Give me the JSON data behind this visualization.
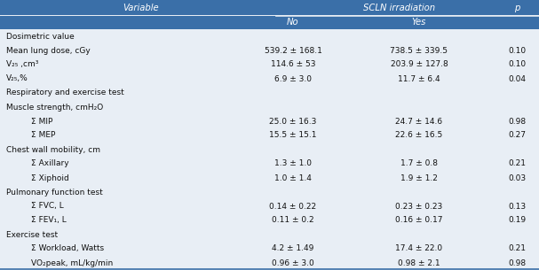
{
  "header_bg": "#3a6fa8",
  "header_text_color": "#ffffff",
  "row_bg": "#e8eef5",
  "body_text_color": "#111111",
  "figsize": [
    6.07,
    3.05
  ],
  "dpi": 100,
  "rows": [
    {
      "label": "Dosimetric value",
      "no": "",
      "yes": "",
      "p": "",
      "indent": false,
      "is_section": true
    },
    {
      "label": "Mean lung dose, cGy",
      "no": "539.2 ± 168.1",
      "yes": "738.5 ± 339.5",
      "p": "0.10",
      "indent": false,
      "is_section": false
    },
    {
      "label": "V₂₅ ,cm³",
      "no": "114.6 ± 53",
      "yes": "203.9 ± 127.8",
      "p": "0.10",
      "indent": false,
      "is_section": false
    },
    {
      "label": "V₂₅,%",
      "no": "6.9 ± 3.0",
      "yes": "11.7 ± 6.4",
      "p": "0.04",
      "indent": false,
      "is_section": false
    },
    {
      "label": "Respiratory and exercise test",
      "no": "",
      "yes": "",
      "p": "",
      "indent": false,
      "is_section": true
    },
    {
      "label": "Muscle strength, cmH₂O",
      "no": "",
      "yes": "",
      "p": "",
      "indent": false,
      "is_section": true
    },
    {
      "label": "Σ MIP",
      "no": "25.0 ± 16.3",
      "yes": "24.7 ± 14.6",
      "p": "0.98",
      "indent": true,
      "is_section": false
    },
    {
      "label": "Σ MEP",
      "no": "15.5 ± 15.1",
      "yes": "22.6 ± 16.5",
      "p": "0.27",
      "indent": true,
      "is_section": false
    },
    {
      "label": "Chest wall mobility, cm",
      "no": "",
      "yes": "",
      "p": "",
      "indent": false,
      "is_section": true
    },
    {
      "label": "Σ Axillary",
      "no": "1.3 ± 1.0",
      "yes": "1.7 ± 0.8",
      "p": "0.21",
      "indent": true,
      "is_section": false
    },
    {
      "label": "Σ Xiphoid",
      "no": "1.0 ± 1.4",
      "yes": "1.9 ± 1.2",
      "p": "0.03",
      "indent": true,
      "is_section": false
    },
    {
      "label": "Pulmonary function test",
      "no": "",
      "yes": "",
      "p": "",
      "indent": false,
      "is_section": true
    },
    {
      "label": "Σ FVC, L",
      "no": "0.14 ± 0.22",
      "yes": "0.23 ± 0.23",
      "p": "0.13",
      "indent": true,
      "is_section": false
    },
    {
      "label": "Σ FEV₁, L",
      "no": "0.11 ± 0.2",
      "yes": "0.16 ± 0.17",
      "p": "0.19",
      "indent": true,
      "is_section": false
    },
    {
      "label": "Exercise test",
      "no": "",
      "yes": "",
      "p": "",
      "indent": false,
      "is_section": true
    },
    {
      "label": "Σ Workload, Watts",
      "no": "4.2 ± 1.49",
      "yes": "17.4 ± 22.0",
      "p": "0.21",
      "indent": true,
      "is_section": false
    },
    {
      "label": "VO₂peak, mL/kg/min",
      "no": "0.96 ± 3.0",
      "yes": "0.98 ± 2.1",
      "p": "0.98",
      "indent": true,
      "is_section": false
    }
  ]
}
